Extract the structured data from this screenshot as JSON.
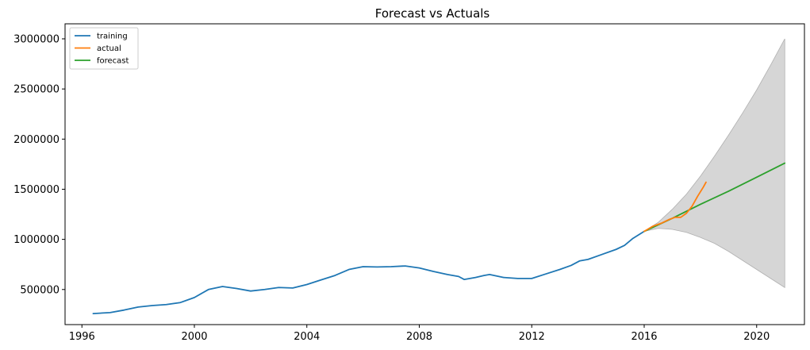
{
  "chart_data": {
    "type": "line",
    "title": "Forecast vs Actuals",
    "xlabel": "",
    "ylabel": "",
    "xlim": [
      1995.4,
      2021.7
    ],
    "ylim": [
      150000,
      3150000
    ],
    "x_ticks": [
      1996,
      2000,
      2004,
      2008,
      2012,
      2016,
      2020
    ],
    "y_ticks": [
      500000,
      1000000,
      1500000,
      2000000,
      2500000,
      3000000
    ],
    "x_tick_labels": [
      "1996",
      "2000",
      "2004",
      "2008",
      "2012",
      "2016",
      "2020"
    ],
    "y_tick_labels": [
      "500000",
      "1000000",
      "1500000",
      "2000000",
      "2500000",
      "3000000"
    ],
    "grid": false,
    "legend_position": "top-left",
    "series": [
      {
        "name": "training",
        "color": "#1f77b4",
        "x": [
          1996.4,
          1997.0,
          1997.5,
          1998.0,
          1998.5,
          1999.0,
          1999.5,
          2000.0,
          2000.5,
          2001.0,
          2001.5,
          2002.0,
          2002.5,
          2003.0,
          2003.5,
          2004.0,
          2004.5,
          2005.0,
          2005.5,
          2006.0,
          2006.5,
          2007.0,
          2007.5,
          2008.0,
          2008.5,
          2009.0,
          2009.4,
          2009.6,
          2010.0,
          2010.3,
          2010.5,
          2011.0,
          2011.5,
          2012.0,
          2012.5,
          2013.0,
          2013.4,
          2013.7,
          2014.0,
          2014.5,
          2015.0,
          2015.3,
          2015.6,
          2016.0
        ],
        "y": [
          260000,
          270000,
          295000,
          325000,
          340000,
          350000,
          370000,
          420000,
          500000,
          530000,
          510000,
          485000,
          500000,
          520000,
          515000,
          550000,
          595000,
          640000,
          700000,
          728000,
          725000,
          728000,
          735000,
          715000,
          680000,
          650000,
          630000,
          600000,
          620000,
          640000,
          650000,
          620000,
          610000,
          610000,
          655000,
          700000,
          740000,
          785000,
          800000,
          850000,
          900000,
          940000,
          1010000,
          1080000
        ]
      },
      {
        "name": "actual",
        "color": "#ff7f0e",
        "x": [
          2016.0,
          2016.3,
          2016.6,
          2016.9,
          2017.1,
          2017.3,
          2017.5,
          2017.7,
          2017.9,
          2018.1,
          2018.2
        ],
        "y": [
          1080000,
          1130000,
          1160000,
          1200000,
          1220000,
          1220000,
          1260000,
          1330000,
          1430000,
          1520000,
          1570000
        ]
      },
      {
        "name": "forecast",
        "color": "#2ca02c",
        "x": [
          2016.0,
          2017.0,
          2018.0,
          2019.0,
          2020.0,
          2021.0
        ],
        "y": [
          1080000,
          1210000,
          1350000,
          1480000,
          1620000,
          1760000
        ]
      }
    ],
    "confidence_band": {
      "color": "#d6d6d6",
      "x": [
        2016.0,
        2016.5,
        2017.0,
        2017.5,
        2018.0,
        2018.5,
        2019.0,
        2019.5,
        2020.0,
        2020.5,
        2021.0
      ],
      "upper": [
        1080000,
        1170000,
        1300000,
        1450000,
        1630000,
        1830000,
        2040000,
        2260000,
        2490000,
        2740000,
        3000000
      ],
      "lower": [
        1080000,
        1110000,
        1100000,
        1070000,
        1020000,
        960000,
        880000,
        790000,
        700000,
        610000,
        520000
      ]
    }
  }
}
